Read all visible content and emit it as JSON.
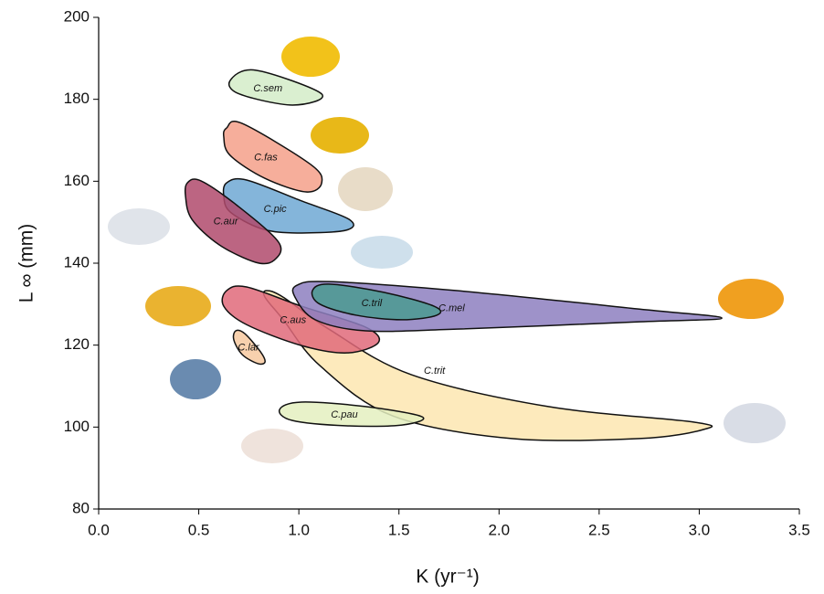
{
  "chart_data": {
    "type": "region",
    "x_label": "K (yr⁻¹)",
    "y_label": "L ∞ (mm)",
    "xlim": [
      0,
      3.5
    ],
    "xticks": [
      {
        "value": 0,
        "label": "0.0"
      },
      0.5,
      {
        "value": 1,
        "label": "1.0"
      },
      1.5,
      {
        "value": 2,
        "label": "2.0"
      },
      2.5,
      {
        "value": 3,
        "label": "3.0"
      },
      3.5
    ],
    "ylim": [
      80,
      200
    ],
    "yticks": [
      80,
      100,
      120,
      140,
      160,
      180,
      200
    ],
    "series": [
      {
        "name": "C.sem",
        "color": "#d4ecc8",
        "x": [
          0.657,
          0.785,
          1.114,
          0.968,
          0.703
        ],
        "y": [
          184.6,
          187.1,
          181.3,
          178.6,
          181.3
        ]
      },
      {
        "name": "C.fas",
        "color": "#f4a08a",
        "x": [
          0.639,
          0.717,
          1.059,
          1.114,
          1.036,
          0.831,
          0.657,
          0.625
        ],
        "y": [
          173.0,
          174.1,
          164.1,
          159.6,
          157.4,
          160.7,
          166.3,
          170.8
        ]
      },
      {
        "name": "C.pic",
        "color": "#6fa8d4",
        "x": [
          0.639,
          0.739,
          1.013,
          1.251,
          1.232,
          0.968,
          0.808,
          0.657,
          0.625
        ],
        "y": [
          159.6,
          160.3,
          155.2,
          150.7,
          148.0,
          147.4,
          148.5,
          152.5,
          156.3
        ]
      },
      {
        "name": "C.aur",
        "color": "#b04a6c",
        "x": [
          0.443,
          0.511,
          0.694,
          0.899,
          0.876,
          0.785,
          0.602,
          0.466,
          0.434
        ],
        "y": [
          159.6,
          160.1,
          154.0,
          145.1,
          140.7,
          140.2,
          144.5,
          150.7,
          156.3
        ]
      },
      {
        "name": "C.trit",
        "color": "#fde6b0",
        "x": [
          0.84,
          0.922,
          1.15,
          1.561,
          2.246,
          2.976,
          3.021,
          2.702,
          2.063,
          1.47,
          1.105,
          0.922,
          0.831
        ],
        "y": [
          133.3,
          131.7,
          123.9,
          112.8,
          105.0,
          101.2,
          99.4,
          97.2,
          97.2,
          102.7,
          115.0,
          126.2,
          131.7
        ]
      },
      {
        "name": "C.aus",
        "color": "#e06a7a",
        "x": [
          0.639,
          0.739,
          1.013,
          1.333,
          1.397,
          1.241,
          1.013,
          0.739,
          0.625
        ],
        "y": [
          133.3,
          134.2,
          129.5,
          124.4,
          120.6,
          118.1,
          119.9,
          125.0,
          129.5
        ]
      },
      {
        "name": "C.mel",
        "color": "#8d7fc0",
        "x": [
          0.99,
          1.15,
          1.789,
          2.702,
          3.113,
          2.702,
          1.789,
          1.333,
          1.082,
          0.981
        ],
        "y": [
          134.6,
          135.5,
          133.3,
          128.8,
          126.6,
          125.7,
          123.9,
          123.5,
          126.2,
          131.7
        ]
      },
      {
        "name": "C.tril",
        "color": "#4a9a90",
        "x": [
          1.068,
          1.15,
          1.424,
          1.675,
          1.689,
          1.515,
          1.287,
          1.105
        ],
        "y": [
          133.3,
          134.9,
          132.9,
          129.5,
          127.3,
          126.2,
          127.3,
          130.0
        ]
      },
      {
        "name": "C.lar",
        "color": "#f7c9a0",
        "x": [
          0.685,
          0.73,
          0.808,
          0.831,
          0.794,
          0.717,
          0.675
        ],
        "y": [
          123.5,
          122.8,
          118.4,
          115.9,
          115.5,
          117.7,
          121.3
        ]
      },
      {
        "name": "C.pau",
        "color": "#e4f0c0",
        "x": [
          0.904,
          1.013,
          1.333,
          1.616,
          1.515,
          1.241,
          0.968
        ],
        "y": [
          104.3,
          106.1,
          105.0,
          102.5,
          100.5,
          100.3,
          101.6
        ]
      }
    ]
  }
}
